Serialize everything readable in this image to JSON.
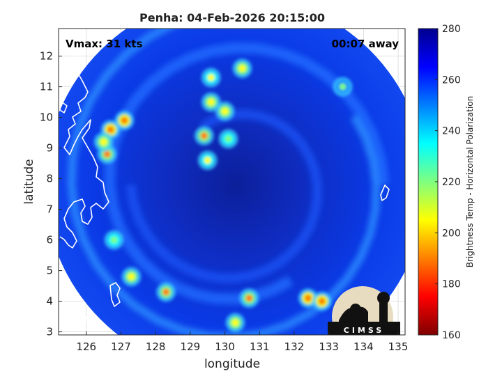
{
  "figure": {
    "title": "Penha: 04-Feb-2026 20:15:00",
    "vmax_label": "Vmax: 31 kts",
    "age_label": "00:07 away",
    "xlabel": "longitude",
    "ylabel": "latitude",
    "logo_text": "CIMSS"
  },
  "chart_data": {
    "type": "heatmap",
    "title": "Penha: 04-Feb-2026 20:15:00",
    "xlabel": "longitude",
    "ylabel": "latitude",
    "xlim": [
      125.2,
      135.2
    ],
    "ylim": [
      2.9,
      12.9
    ],
    "x_ticks": [
      126,
      127,
      128,
      129,
      130,
      131,
      132,
      133,
      134,
      135
    ],
    "y_ticks": [
      3,
      4,
      5,
      6,
      7,
      8,
      9,
      10,
      11,
      12
    ],
    "grid": true,
    "storm_center": [
      130.3,
      7.8
    ],
    "scan_radius_deg": 5.5,
    "colorbar": {
      "label": "Brightness Temp - Horizontal Polarization",
      "min": 160,
      "max": 280,
      "ticks": [
        160,
        180,
        200,
        220,
        240,
        260,
        280
      ],
      "colormap": [
        "#7f0000",
        "#ff0000",
        "#ff7f00",
        "#ffff00",
        "#7fff7f",
        "#00ffff",
        "#007fff",
        "#0000ff",
        "#00008f"
      ]
    },
    "cold_features": [
      {
        "lon": 126.7,
        "lat": 9.6,
        "temp": 185
      },
      {
        "lon": 127.1,
        "lat": 9.9,
        "temp": 190
      },
      {
        "lon": 126.6,
        "lat": 8.8,
        "temp": 195
      },
      {
        "lon": 126.5,
        "lat": 9.2,
        "temp": 205
      },
      {
        "lon": 129.4,
        "lat": 9.4,
        "temp": 195
      },
      {
        "lon": 129.5,
        "lat": 8.6,
        "temp": 210
      },
      {
        "lon": 129.6,
        "lat": 10.5,
        "temp": 200
      },
      {
        "lon": 129.6,
        "lat": 11.3,
        "temp": 210
      },
      {
        "lon": 130.0,
        "lat": 10.2,
        "temp": 205
      },
      {
        "lon": 130.1,
        "lat": 9.3,
        "temp": 215
      },
      {
        "lon": 130.5,
        "lat": 11.6,
        "temp": 200
      },
      {
        "lon": 127.3,
        "lat": 4.8,
        "temp": 205
      },
      {
        "lon": 128.3,
        "lat": 4.3,
        "temp": 195
      },
      {
        "lon": 130.3,
        "lat": 3.3,
        "temp": 200
      },
      {
        "lon": 130.7,
        "lat": 4.1,
        "temp": 195
      },
      {
        "lon": 132.4,
        "lat": 4.1,
        "temp": 185
      },
      {
        "lon": 132.8,
        "lat": 4.0,
        "temp": 190
      },
      {
        "lon": 126.8,
        "lat": 6.0,
        "temp": 215
      },
      {
        "lon": 133.4,
        "lat": 11.0,
        "temp": 225
      }
    ]
  }
}
